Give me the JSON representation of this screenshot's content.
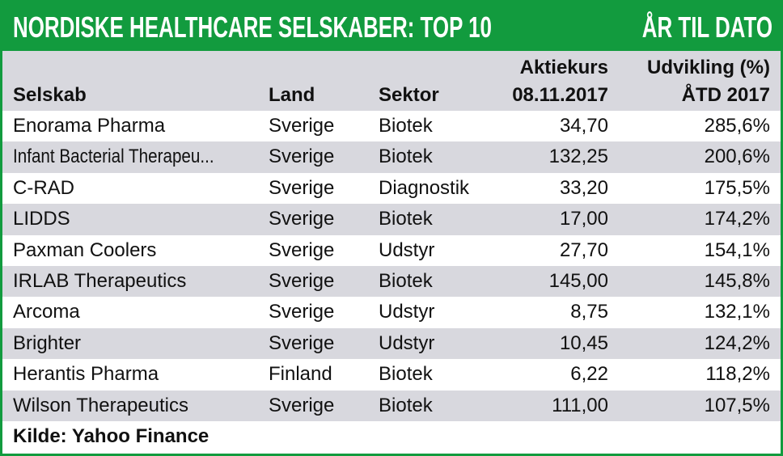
{
  "header": {
    "title": "NORDISKE HEALTHCARE SELSKABER: TOP 10",
    "title_right": "ÅR TIL DATO"
  },
  "table": {
    "columns": [
      [
        "Selskab"
      ],
      [
        "Land"
      ],
      [
        "Sektor"
      ],
      [
        "Aktiekurs",
        "08.11.2017"
      ],
      [
        "Udvikling (%)",
        "ÅTD 2017"
      ]
    ],
    "rows": [
      [
        "Enorama Pharma",
        "Sverige",
        "Biotek",
        "34,70",
        "285,6%"
      ],
      [
        "Infant Bacterial Therapeu...",
        "Sverige",
        "Biotek",
        "132,25",
        "200,6%"
      ],
      [
        "C-RAD",
        "Sverige",
        "Diagnostik",
        "33,20",
        "175,5%"
      ],
      [
        "LIDDS",
        "Sverige",
        "Biotek",
        "17,00",
        "174,2%"
      ],
      [
        "Paxman Coolers",
        "Sverige",
        "Udstyr",
        "27,70",
        "154,1%"
      ],
      [
        "IRLAB Therapeutics",
        "Sverige",
        "Biotek",
        "145,00",
        "145,8%"
      ],
      [
        "Arcoma",
        "Sverige",
        "Udstyr",
        "8,75",
        "132,1%"
      ],
      [
        "Brighter",
        "Sverige",
        "Udstyr",
        "10,45",
        "124,2%"
      ],
      [
        "Herantis Pharma",
        "Finland",
        "Biotek",
        "6,22",
        "118,2%"
      ],
      [
        "Wilson Therapeutics",
        "Sverige",
        "Biotek",
        "111,00",
        "107,5%"
      ]
    ]
  },
  "source": "Kilde: Yahoo Finance"
}
